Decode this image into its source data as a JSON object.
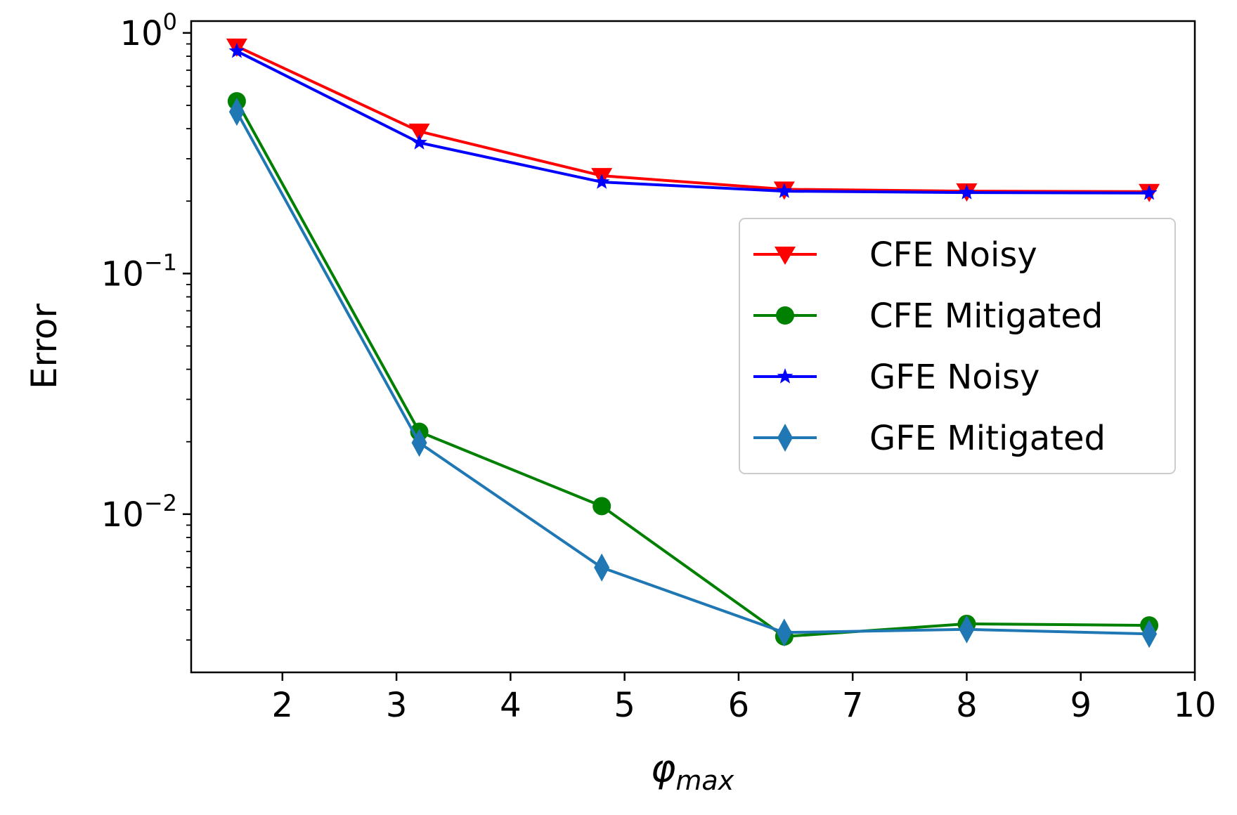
{
  "chart_data": {
    "type": "line",
    "title": "",
    "xlabel": "φ",
    "xlabel_sub": "max",
    "ylabel": "Error",
    "yscale": "log",
    "xlim": [
      1.2,
      10
    ],
    "ylim": [
      0.0022,
      1.12
    ],
    "grid": false,
    "legend_position": "center-right",
    "x": [
      1.6,
      3.2,
      4.8,
      6.4,
      8.0,
      9.6
    ],
    "x_ticks": [
      2,
      3,
      4,
      5,
      6,
      7,
      8,
      9,
      10
    ],
    "y_ticks": [
      {
        "value": 1,
        "base": "10",
        "exp": "0"
      },
      {
        "value": 0.1,
        "base": "10",
        "exp": "−1"
      },
      {
        "value": 0.01,
        "base": "10",
        "exp": "−2"
      }
    ],
    "series": [
      {
        "name": "CFE Noisy",
        "color": "#ff0000",
        "marker": "triangle-down",
        "values": [
          0.88,
          0.39,
          0.255,
          0.224,
          0.22,
          0.219
        ]
      },
      {
        "name": "CFE Mitigated",
        "color": "#008000",
        "marker": "circle",
        "values": [
          0.52,
          0.022,
          0.0108,
          0.0031,
          0.0035,
          0.00345
        ]
      },
      {
        "name": "GFE Noisy",
        "color": "#0000ff",
        "marker": "star",
        "values": [
          0.84,
          0.35,
          0.24,
          0.22,
          0.217,
          0.216
        ]
      },
      {
        "name": "GFE Mitigated",
        "color": "#1f77b4",
        "marker": "thin-diamond",
        "values": [
          0.47,
          0.0198,
          0.006,
          0.00322,
          0.00332,
          0.00318
        ]
      }
    ]
  }
}
